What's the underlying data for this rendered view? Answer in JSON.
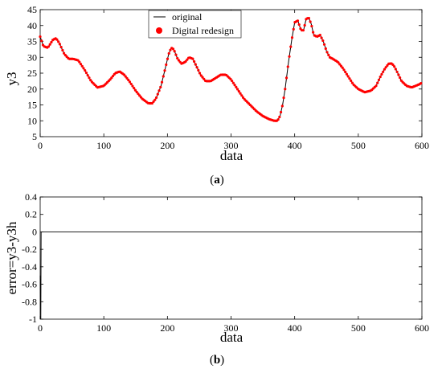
{
  "chart_data": [
    {
      "type": "line",
      "caption": "(a)",
      "caption_letter": "a",
      "xlabel": "data",
      "ylabel": "y3",
      "xlim": [
        0,
        600
      ],
      "ylim": [
        5,
        45
      ],
      "xticks": [
        0,
        100,
        200,
        300,
        400,
        500,
        600
      ],
      "yticks": [
        5,
        10,
        15,
        20,
        25,
        30,
        35,
        40,
        45
      ],
      "grid": false,
      "legend_position": "top-center",
      "series": [
        {
          "name": "original",
          "style": "line",
          "color": "#000000",
          "x": [
            0,
            5,
            12,
            20,
            25,
            30,
            38,
            45,
            52,
            60,
            70,
            80,
            90,
            100,
            110,
            118,
            125,
            132,
            140,
            150,
            160,
            170,
            176,
            182,
            190,
            196,
            202,
            206,
            210,
            216,
            222,
            228,
            234,
            240,
            246,
            252,
            260,
            268,
            276,
            284,
            292,
            300,
            310,
            320,
            330,
            340,
            350,
            360,
            368,
            373,
            377,
            381,
            385,
            390,
            395,
            400,
            405,
            410,
            414,
            418,
            422,
            426,
            430,
            435,
            440,
            445,
            450,
            455,
            460,
            468,
            476,
            484,
            492,
            500,
            510,
            520,
            528,
            535,
            542,
            548,
            553,
            557,
            562,
            568,
            576,
            584,
            590,
            596,
            600
          ],
          "y": [
            36.5,
            33.5,
            33,
            35.5,
            36,
            34.5,
            31,
            29.5,
            29.5,
            29,
            26,
            22.5,
            20.5,
            21,
            23,
            25,
            25.5,
            24.5,
            22.5,
            19.5,
            17,
            15.5,
            15.5,
            17,
            21,
            26,
            31,
            33,
            32.5,
            29.5,
            28,
            28.5,
            30,
            29.5,
            27,
            24.5,
            22.5,
            22.5,
            23.5,
            24.5,
            24.5,
            23,
            20,
            17,
            15,
            13,
            11.5,
            10.5,
            10,
            10,
            11.5,
            15,
            20,
            28,
            35,
            41,
            41.5,
            38.5,
            38.5,
            42,
            42.5,
            40.5,
            37,
            36.5,
            37,
            35,
            32,
            30,
            29.5,
            28.5,
            26.5,
            24,
            21.5,
            20,
            19,
            19.5,
            21,
            24,
            26.5,
            28,
            28,
            27,
            25,
            22.5,
            21,
            20.5,
            21,
            21.5,
            22
          ]
        },
        {
          "name": "Digital redesign",
          "style": "markers",
          "color": "#ff0000",
          "same_as": "original"
        }
      ]
    },
    {
      "type": "line",
      "caption": "(b)",
      "caption_letter": "b",
      "xlabel": "data",
      "ylabel": "error=y3-y3h",
      "xlim": [
        0,
        600
      ],
      "ylim": [
        -1,
        0.4
      ],
      "xticks": [
        0,
        100,
        200,
        300,
        400,
        500,
        600
      ],
      "yticks": [
        "-1",
        "-0.8",
        "-0.6",
        "-0.4",
        "-0.2",
        "0",
        "0.2",
        "0.4"
      ],
      "grid": false,
      "series": [
        {
          "color": "#000000",
          "x": [
            0,
            1,
            1.5,
            2,
            3,
            600
          ],
          "y": [
            -0.5,
            -1,
            0,
            0,
            0,
            0
          ]
        }
      ]
    }
  ],
  "colors": {
    "line": "#000000",
    "marker": "#ff0000"
  }
}
